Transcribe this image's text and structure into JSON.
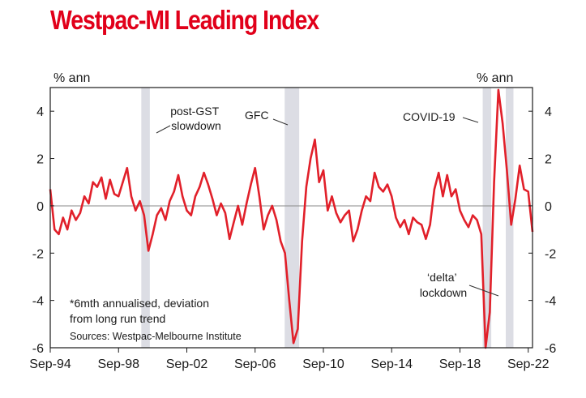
{
  "title": "Westpac-MI Leading Index",
  "chart_data": {
    "type": "line",
    "ylabel_left": "% ann",
    "ylabel_right": "% ann",
    "ylim": [
      -6,
      5
    ],
    "yticks": [
      4,
      2,
      0,
      -2,
      -4,
      -6
    ],
    "xticks": [
      "Sep-94",
      "Sep-98",
      "Sep-02",
      "Sep-06",
      "Sep-10",
      "Sep-14",
      "Sep-18",
      "Sep-22"
    ],
    "x_range": [
      "1994-09",
      "2022-12"
    ],
    "grid": false,
    "zero_line": true,
    "line_color": "#e1202a",
    "shade_color": "#dcdde4",
    "shaded_periods": [
      {
        "start": 2000.0,
        "end": 2000.5
      },
      {
        "start": 2008.4,
        "end": 2009.25
      },
      {
        "start": 2020.0,
        "end": 2020.5
      },
      {
        "start": 2021.35,
        "end": 2021.8
      }
    ],
    "annotations": [
      {
        "lines": [
          "post-GST",
          "slowdown"
        ]
      },
      {
        "lines": [
          "GFC"
        ]
      },
      {
        "lines": [
          "COVID-19"
        ]
      },
      {
        "lines": [
          "‘delta’",
          "lockdown"
        ]
      }
    ],
    "footnote": [
      "*6mth annualised, deviation",
      "from long run trend"
    ],
    "source": "Sources: Westpac-Melbourne Institute",
    "series": [
      {
        "points": [
          [
            "1994-09",
            0.7
          ],
          [
            "1994-12",
            -1.0
          ],
          [
            "1995-03",
            -1.2
          ],
          [
            "1995-06",
            -0.5
          ],
          [
            "1995-09",
            -1.0
          ],
          [
            "1995-12",
            -0.2
          ],
          [
            "1996-03",
            -0.6
          ],
          [
            "1996-06",
            -0.3
          ],
          [
            "1996-09",
            0.4
          ],
          [
            "1996-12",
            0.1
          ],
          [
            "1997-03",
            1.0
          ],
          [
            "1997-06",
            0.8
          ],
          [
            "1997-09",
            1.2
          ],
          [
            "1997-12",
            0.3
          ],
          [
            "1998-03",
            1.1
          ],
          [
            "1998-06",
            0.5
          ],
          [
            "1998-09",
            0.4
          ],
          [
            "1998-12",
            1.0
          ],
          [
            "1999-03",
            1.6
          ],
          [
            "1999-06",
            0.4
          ],
          [
            "1999-09",
            -0.2
          ],
          [
            "1999-12",
            0.2
          ],
          [
            "2000-03",
            -0.4
          ],
          [
            "2000-06",
            -1.9
          ],
          [
            "2000-09",
            -1.2
          ],
          [
            "2000-12",
            -0.4
          ],
          [
            "2001-03",
            -0.1
          ],
          [
            "2001-06",
            -0.6
          ],
          [
            "2001-09",
            0.2
          ],
          [
            "2001-12",
            0.6
          ],
          [
            "2002-03",
            1.3
          ],
          [
            "2002-06",
            0.4
          ],
          [
            "2002-09",
            -0.2
          ],
          [
            "2002-12",
            -0.4
          ],
          [
            "2003-03",
            0.4
          ],
          [
            "2003-06",
            0.8
          ],
          [
            "2003-09",
            1.4
          ],
          [
            "2003-12",
            0.9
          ],
          [
            "2004-03",
            0.3
          ],
          [
            "2004-06",
            -0.4
          ],
          [
            "2004-09",
            0.1
          ],
          [
            "2004-12",
            -0.3
          ],
          [
            "2005-03",
            -1.4
          ],
          [
            "2005-06",
            -0.7
          ],
          [
            "2005-09",
            0.0
          ],
          [
            "2005-12",
            -0.8
          ],
          [
            "2006-03",
            0.1
          ],
          [
            "2006-06",
            0.9
          ],
          [
            "2006-09",
            1.6
          ],
          [
            "2006-12",
            0.4
          ],
          [
            "2007-03",
            -1.0
          ],
          [
            "2007-06",
            -0.4
          ],
          [
            "2007-09",
            0.0
          ],
          [
            "2007-12",
            -0.6
          ],
          [
            "2008-03",
            -1.5
          ],
          [
            "2008-06",
            -2.0
          ],
          [
            "2008-09",
            -4.0
          ],
          [
            "2008-12",
            -5.8
          ],
          [
            "2009-03",
            -5.2
          ],
          [
            "2009-06",
            -1.5
          ],
          [
            "2009-09",
            0.8
          ],
          [
            "2009-12",
            2.0
          ],
          [
            "2010-03",
            2.8
          ],
          [
            "2010-06",
            1.0
          ],
          [
            "2010-09",
            1.5
          ],
          [
            "2010-12",
            -0.2
          ],
          [
            "2011-03",
            0.4
          ],
          [
            "2011-06",
            -0.3
          ],
          [
            "2011-09",
            -0.7
          ],
          [
            "2011-12",
            -0.4
          ],
          [
            "2012-03",
            -0.2
          ],
          [
            "2012-06",
            -1.5
          ],
          [
            "2012-09",
            -1.0
          ],
          [
            "2012-12",
            -0.2
          ],
          [
            "2013-03",
            0.4
          ],
          [
            "2013-06",
            0.2
          ],
          [
            "2013-09",
            1.4
          ],
          [
            "2013-12",
            0.8
          ],
          [
            "2014-03",
            0.6
          ],
          [
            "2014-06",
            0.9
          ],
          [
            "2014-09",
            0.4
          ],
          [
            "2014-12",
            -0.5
          ],
          [
            "2015-03",
            -0.9
          ],
          [
            "2015-06",
            -0.6
          ],
          [
            "2015-09",
            -1.2
          ],
          [
            "2015-12",
            -0.5
          ],
          [
            "2016-03",
            -0.7
          ],
          [
            "2016-06",
            -0.8
          ],
          [
            "2016-09",
            -1.4
          ],
          [
            "2016-12",
            -0.8
          ],
          [
            "2017-03",
            0.7
          ],
          [
            "2017-06",
            1.4
          ],
          [
            "2017-09",
            0.4
          ],
          [
            "2017-12",
            1.3
          ],
          [
            "2018-03",
            0.4
          ],
          [
            "2018-06",
            0.7
          ],
          [
            "2018-09",
            -0.2
          ],
          [
            "2018-12",
            -0.6
          ],
          [
            "2019-03",
            -0.9
          ],
          [
            "2019-06",
            -0.4
          ],
          [
            "2019-09",
            -0.6
          ],
          [
            "2019-12",
            -1.2
          ],
          [
            "2020-03",
            -6.0
          ],
          [
            "2020-06",
            -4.5
          ],
          [
            "2020-09",
            1.0
          ],
          [
            "2020-12",
            4.9
          ],
          [
            "2021-03",
            3.5
          ],
          [
            "2021-06",
            1.5
          ],
          [
            "2021-09",
            -0.8
          ],
          [
            "2021-12",
            0.3
          ],
          [
            "2022-03",
            1.7
          ],
          [
            "2022-06",
            0.7
          ],
          [
            "2022-09",
            0.6
          ],
          [
            "2022-12",
            -1.1
          ]
        ]
      }
    ]
  }
}
